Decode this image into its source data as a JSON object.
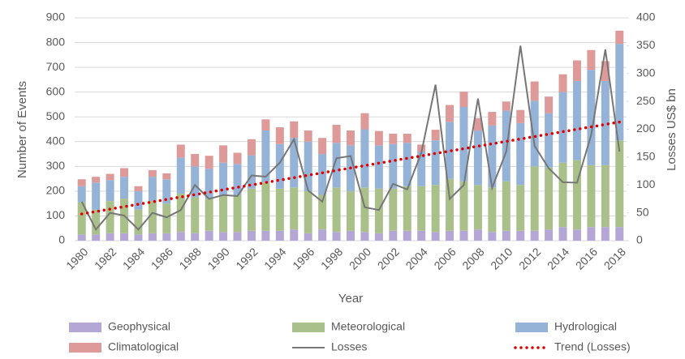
{
  "chart_data": {
    "type": "bar",
    "stacked": true,
    "categories": [
      "1980",
      null,
      "1982",
      null,
      "1984",
      null,
      "1986",
      null,
      "1988",
      null,
      "1990",
      null,
      "1992",
      null,
      "1994",
      null,
      "1996",
      null,
      "1998",
      null,
      "2000",
      null,
      "2002",
      null,
      "2004",
      null,
      "2006",
      null,
      "2008",
      null,
      "2010",
      null,
      "2012",
      null,
      "2014",
      null,
      "2016",
      null,
      "2018"
    ],
    "x_label": "Year",
    "y_label": "Number of Events",
    "y2_label": "Losses US$ bn",
    "ylim": [
      0,
      900
    ],
    "yticks": [
      0,
      100,
      200,
      300,
      400,
      500,
      600,
      700,
      800,
      900
    ],
    "y2lim": [
      0,
      400
    ],
    "y2ticks": [
      0,
      50,
      100,
      150,
      200,
      250,
      300,
      350,
      400
    ],
    "grid": true,
    "legend": "bottom",
    "series": [
      {
        "name": "Geophysical",
        "color": "#b4a7d6",
        "values": [
          25,
          25,
          30,
          30,
          25,
          30,
          30,
          35,
          30,
          40,
          35,
          35,
          40,
          40,
          40,
          45,
          30,
          45,
          35,
          40,
          35,
          30,
          40,
          40,
          40,
          35,
          40,
          40,
          45,
          35,
          40,
          40,
          40,
          45,
          55,
          45,
          55,
          55,
          55
        ]
      },
      {
        "name": "Meteorological",
        "color": "#a9c08a",
        "values": [
          130,
          100,
          130,
          140,
          100,
          130,
          120,
          155,
          145,
          130,
          150,
          150,
          170,
          195,
          170,
          170,
          170,
          140,
          180,
          160,
          180,
          180,
          170,
          180,
          180,
          190,
          210,
          200,
          180,
          180,
          200,
          185,
          260,
          250,
          260,
          280,
          250,
          250,
          350
        ]
      },
      {
        "name": "Hydrological",
        "color": "#95b3d7",
        "values": [
          65,
          110,
          85,
          88,
          75,
          98,
          98,
          145,
          125,
          120,
          130,
          125,
          135,
          210,
          180,
          200,
          200,
          165,
          180,
          185,
          235,
          175,
          180,
          175,
          140,
          180,
          230,
          300,
          220,
          250,
          285,
          250,
          265,
          220,
          285,
          320,
          385,
          340,
          390
        ]
      },
      {
        "name": "Climatological",
        "color": "#dd9a98",
        "values": [
          28,
          23,
          25,
          35,
          20,
          27,
          24,
          53,
          50,
          53,
          70,
          45,
          65,
          45,
          68,
          67,
          45,
          65,
          73,
          60,
          65,
          58,
          42,
          37,
          28,
          43,
          68,
          62,
          50,
          55,
          37,
          53,
          78,
          67,
          72,
          83,
          80,
          80,
          53
        ]
      },
      {
        "name": "Losses",
        "type": "line",
        "axis": "y2",
        "color": "#767676",
        "values": [
          70,
          20,
          50,
          45,
          20,
          50,
          42,
          55,
          100,
          75,
          82,
          80,
          117,
          115,
          140,
          182,
          90,
          70,
          148,
          152,
          60,
          55,
          102,
          92,
          158,
          280,
          75,
          100,
          255,
          95,
          160,
          350,
          170,
          130,
          105,
          104,
          190,
          343,
          160
        ]
      },
      {
        "name": "Trend (Losses)",
        "type": "line",
        "axis": "y2",
        "style": "dotted",
        "color": "#e00000",
        "values": [
          48.0,
          52.3,
          56.7,
          61.0,
          65.4,
          69.7,
          74.1,
          78.4,
          82.7,
          87.1,
          91.4,
          95.8,
          100.1,
          104.4,
          108.8,
          113.1,
          117.5,
          121.8,
          126.2,
          130.5,
          134.8,
          139.2,
          143.5,
          147.9,
          152.2,
          156.6,
          160.9,
          165.2,
          169.6,
          173.9,
          178.3,
          182.6,
          186.9,
          191.3,
          195.6,
          200.0,
          204.3,
          208.7,
          213.0
        ]
      }
    ]
  }
}
